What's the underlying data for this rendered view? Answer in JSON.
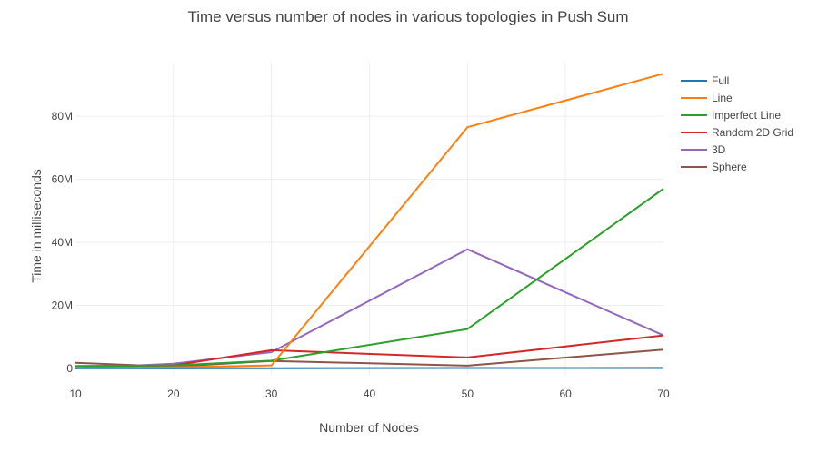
{
  "chart_data": {
    "type": "line",
    "title": "Time versus number of nodes in various topologies in Push Sum",
    "xlabel": "Number of Nodes",
    "ylabel": "Time in milliseconds",
    "x": [
      10,
      20,
      30,
      50,
      70
    ],
    "xlim": [
      10,
      70
    ],
    "ylim": [
      -2000000,
      97000000
    ],
    "x_ticks": [
      10,
      20,
      30,
      40,
      50,
      60,
      70
    ],
    "x_tick_labels": [
      "10",
      "20",
      "30",
      "40",
      "50",
      "60",
      "70"
    ],
    "y_ticks": [
      0,
      20000000,
      40000000,
      60000000,
      80000000
    ],
    "y_tick_labels": [
      "0",
      "20M",
      "40M",
      "60M",
      "80M"
    ],
    "grid": true,
    "legend_position": "right",
    "series": [
      {
        "name": "Full",
        "color": "#1f77b4",
        "values": [
          100000,
          50000,
          100000,
          150000,
          200000
        ]
      },
      {
        "name": "Line",
        "color": "#ff7f0e",
        "values": [
          200000,
          400000,
          1000000,
          76500000,
          93500000
        ]
      },
      {
        "name": "Imperfect Line",
        "color": "#2ca02c",
        "values": [
          800000,
          1000000,
          2500000,
          12500000,
          57000000
        ]
      },
      {
        "name": "Random 2D Grid",
        "color": "#d62728",
        "values": [
          200000,
          1000000,
          5800000,
          3500000,
          10500000
        ]
      },
      {
        "name": "3D",
        "color": "#9467bd",
        "values": [
          100000,
          1500000,
          5200000,
          37800000,
          10500000
        ]
      },
      {
        "name": "Sphere",
        "color": "#8c564b",
        "values": [
          1800000,
          600000,
          2400000,
          900000,
          6000000
        ]
      }
    ]
  }
}
